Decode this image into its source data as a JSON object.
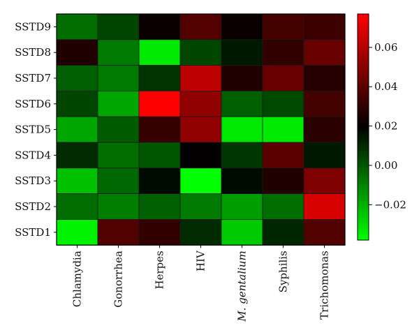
{
  "chart_data": {
    "type": "heatmap",
    "title": "",
    "xlabel": "",
    "ylabel": "",
    "columns": [
      "Chlamydia",
      "Gonorrhea",
      "Herpes",
      "HIV",
      "M. gentalium",
      "Syphilis",
      "Trichomonas"
    ],
    "column_italic": [
      false,
      false,
      false,
      false,
      true,
      false,
      false
    ],
    "rows": [
      "SSTD9",
      "SSTD8",
      "SSTD7",
      "SSTD6",
      "SSTD5",
      "SSTD4",
      "SSTD3",
      "SSTD2",
      "SSTD1"
    ],
    "values": [
      [
        -0.005,
        0.004,
        0.022,
        0.038,
        0.022,
        0.035,
        0.033
      ],
      [
        0.027,
        -0.008,
        -0.033,
        0.004,
        0.014,
        0.031,
        0.043
      ],
      [
        -0.002,
        -0.008,
        0.008,
        0.062,
        0.027,
        0.043,
        0.028
      ],
      [
        0.004,
        -0.018,
        0.077,
        0.052,
        -0.002,
        0.003,
        0.035
      ],
      [
        -0.018,
        -0.001,
        0.032,
        0.052,
        -0.033,
        -0.033,
        0.029
      ],
      [
        0.01,
        -0.005,
        0.0,
        0.02,
        0.007,
        0.04,
        0.014
      ],
      [
        -0.024,
        -0.004,
        0.017,
        -0.038,
        0.017,
        0.027,
        0.048
      ],
      [
        -0.005,
        -0.009,
        -0.002,
        -0.008,
        -0.016,
        -0.005,
        0.068
      ],
      [
        -0.035,
        0.038,
        0.031,
        0.01,
        -0.026,
        0.011,
        0.038
      ]
    ],
    "colorbar": {
      "vmin": -0.038,
      "vmax": 0.077,
      "ticks": [
        -0.02,
        0.0,
        0.02,
        0.04,
        0.06
      ],
      "tick_labels": [
        "−0.02",
        "0.00",
        "0.02",
        "0.04",
        "0.06"
      ],
      "colors": [
        "#00ff00",
        "#000000",
        "#ff0000"
      ]
    }
  }
}
